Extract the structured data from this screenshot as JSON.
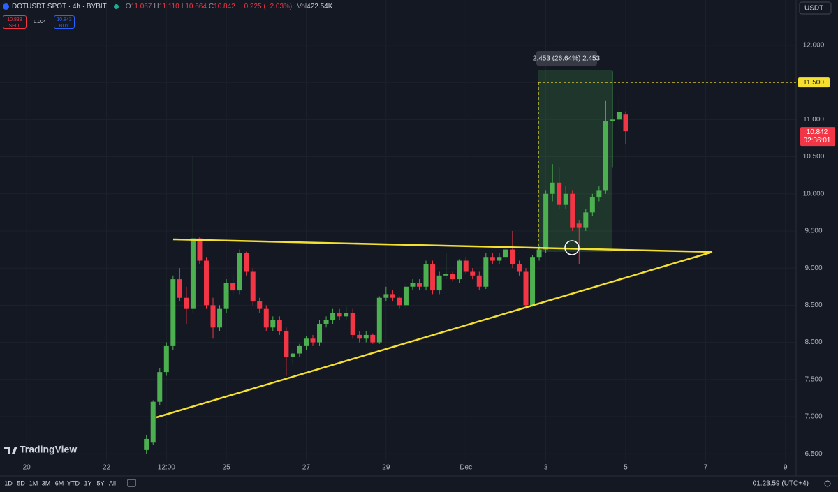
{
  "header": {
    "symbol": "DOTUSDT SPOT · 4h · BYBIT",
    "ohlc": [
      {
        "key": "O",
        "value": "11.067"
      },
      {
        "key": "H",
        "value": "11.110"
      },
      {
        "key": "L",
        "value": "10.664"
      },
      {
        "key": "C",
        "value": "10.842"
      }
    ],
    "change": "−0.225 (−2.03%)",
    "volume_key": "Vol",
    "volume": "422.54K"
  },
  "trade": {
    "sell_price": "10.839",
    "sell": "SELL",
    "spread": "0.004",
    "buy_price": "10.843",
    "buy": "BUY"
  },
  "currency": "USDT",
  "branding": "TradingView",
  "toolbar": {
    "ranges": [
      "1D",
      "5D",
      "1M",
      "3M",
      "6M",
      "YTD",
      "1Y",
      "5Y",
      "All"
    ],
    "clock": "01:23:59 (UTC+4)"
  },
  "chart_data": {
    "type": "candlestick",
    "x": [
      0,
      4,
      8,
      12,
      16,
      20,
      24,
      28,
      32,
      36,
      40,
      44,
      48,
      52,
      56,
      60,
      64,
      68,
      72,
      76,
      80,
      84,
      88,
      92,
      96,
      100,
      104,
      108,
      112,
      116,
      120,
      124,
      128,
      132,
      136,
      140,
      144,
      148,
      152,
      156,
      160,
      164,
      168,
      172,
      176,
      180,
      184,
      188,
      192,
      196,
      200,
      204,
      208,
      212,
      216,
      220,
      224,
      228,
      232,
      236,
      240,
      244,
      248,
      252,
      256,
      260,
      264,
      268,
      272,
      276,
      280,
      284,
      288
    ],
    "open": [
      6.55,
      6.65,
      7.2,
      7.6,
      7.95,
      8.85,
      8.6,
      8.45,
      9.4,
      9.1,
      8.5,
      8.2,
      8.45,
      8.8,
      8.7,
      9.2,
      8.95,
      8.55,
      8.45,
      8.2,
      8.3,
      8.15,
      7.8,
      7.85,
      7.95,
      8.05,
      8.0,
      8.25,
      8.3,
      8.4,
      8.35,
      8.4,
      8.1,
      8.05,
      8.1,
      8.0,
      8.6,
      8.65,
      8.6,
      8.5,
      8.75,
      8.8,
      8.75,
      9.05,
      8.7,
      8.9,
      8.92,
      8.85,
      9.1,
      8.95,
      8.9,
      8.75,
      9.15,
      9.1,
      9.15,
      9.25,
      9.05,
      8.95,
      8.5,
      9.15,
      9.25,
      10.0,
      10.15,
      9.85,
      10.0,
      9.6,
      9.55,
      9.75,
      9.95,
      10.05,
      10.98,
      11.0,
      11.067
    ],
    "high": [
      6.75,
      7.22,
      7.65,
      8.0,
      8.9,
      9.0,
      8.75,
      10.5,
      9.42,
      9.15,
      8.6,
      8.5,
      8.85,
      8.9,
      9.25,
      9.22,
      9.0,
      8.6,
      8.5,
      8.35,
      8.35,
      8.2,
      7.9,
      7.98,
      8.08,
      8.1,
      8.3,
      8.35,
      8.45,
      8.45,
      8.48,
      8.45,
      8.15,
      8.15,
      8.12,
      8.62,
      8.75,
      8.7,
      8.62,
      8.8,
      8.85,
      8.85,
      9.1,
      9.1,
      8.95,
      9.2,
      8.95,
      9.12,
      9.15,
      9.0,
      8.95,
      9.2,
      9.2,
      9.2,
      9.3,
      9.5,
      9.1,
      9.0,
      9.18,
      9.3,
      10.05,
      10.4,
      10.35,
      10.1,
      10.05,
      9.65,
      9.8,
      10.0,
      10.1,
      11.25,
      11.65,
      11.3,
      11.11
    ],
    "low": [
      6.5,
      6.62,
      7.15,
      7.55,
      7.9,
      8.55,
      8.25,
      8.4,
      9.05,
      8.45,
      8.05,
      8.15,
      8.4,
      8.65,
      8.65,
      8.9,
      8.5,
      8.4,
      8.15,
      8.15,
      8.1,
      7.55,
      7.7,
      7.8,
      7.9,
      7.95,
      7.95,
      8.2,
      8.25,
      8.3,
      8.3,
      8.05,
      8.0,
      8.0,
      7.98,
      7.98,
      8.55,
      8.55,
      8.45,
      8.45,
      8.7,
      8.7,
      8.7,
      8.65,
      8.65,
      8.85,
      8.82,
      8.8,
      8.92,
      8.85,
      8.7,
      8.72,
      9.05,
      9.05,
      9.1,
      9.0,
      8.9,
      8.45,
      8.48,
      9.1,
      9.2,
      9.9,
      9.8,
      9.8,
      9.5,
      9.05,
      9.5,
      9.7,
      9.9,
      10.0,
      10.35,
      10.9,
      10.664
    ],
    "close": [
      6.7,
      7.2,
      7.6,
      7.95,
      8.85,
      8.6,
      8.45,
      9.4,
      9.1,
      8.5,
      8.2,
      8.45,
      8.8,
      8.7,
      9.2,
      8.95,
      8.55,
      8.45,
      8.2,
      8.3,
      8.15,
      7.8,
      7.85,
      7.95,
      8.05,
      8.0,
      8.25,
      8.3,
      8.4,
      8.35,
      8.4,
      8.1,
      8.05,
      8.1,
      8.0,
      8.6,
      8.65,
      8.6,
      8.5,
      8.75,
      8.8,
      8.75,
      9.05,
      8.7,
      8.9,
      8.92,
      8.85,
      9.1,
      8.95,
      8.9,
      8.75,
      9.15,
      9.1,
      9.15,
      9.25,
      9.05,
      8.95,
      8.5,
      9.15,
      9.25,
      10.0,
      10.15,
      9.85,
      10.0,
      9.55,
      9.55,
      9.75,
      9.95,
      10.05,
      10.98,
      11.0,
      11.1,
      10.842
    ],
    "up_color": "#4caf50",
    "down_color": "#f23645",
    "xlim": [
      -88,
      390.4
    ],
    "xticks": [
      {
        "value": -72,
        "label": "20"
      },
      {
        "value": -24,
        "label": "22"
      },
      {
        "value": 12,
        "label": "12:00"
      },
      {
        "value": 48,
        "label": "25"
      },
      {
        "value": 96,
        "label": "27"
      },
      {
        "value": 144,
        "label": "29"
      },
      {
        "value": 192,
        "label": "Dec"
      },
      {
        "value": 240,
        "label": "3"
      },
      {
        "value": 288,
        "label": "5"
      },
      {
        "value": 336,
        "label": "7"
      },
      {
        "value": 384,
        "label": "9"
      }
    ],
    "ylim": [
      6.22,
      12.61
    ],
    "yticks": [
      {
        "value": 6.5,
        "label": "6.500"
      },
      {
        "value": 7,
        "label": "7.000"
      },
      {
        "value": 7.5,
        "label": "7.500"
      },
      {
        "value": 8,
        "label": "8.000"
      },
      {
        "value": 8.5,
        "label": "8.500"
      },
      {
        "value": 9,
        "label": "9.000"
      },
      {
        "value": 9.5,
        "label": "9.500"
      },
      {
        "value": 10,
        "label": "10.000"
      },
      {
        "value": 10.5,
        "label": "10.500"
      },
      {
        "value": 11,
        "label": "11.000"
      },
      {
        "value": 11.5,
        "label": "11.500"
      },
      {
        "value": 12,
        "label": "12.000"
      }
    ],
    "grid": true,
    "price_line": {
      "value": 11.5,
      "label": "11.500"
    },
    "last_price": {
      "value": 10.842,
      "label": "10.842"
    },
    "countdown": "02:36:01",
    "measure_label": "2.453 (26.64%) 2,453"
  }
}
